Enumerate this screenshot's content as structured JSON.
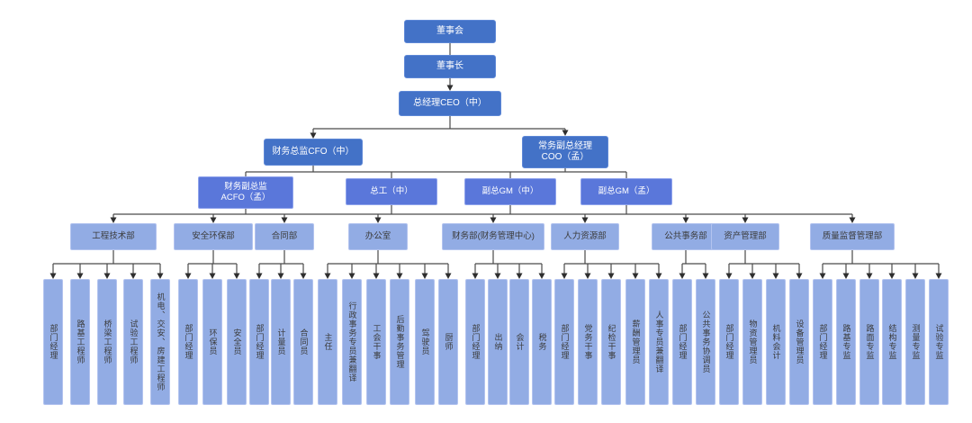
{
  "org": {
    "top": [
      "董事会",
      "董事长",
      "总经理CEO（中）"
    ],
    "level4": [
      {
        "label": "财务总监CFO（中）"
      },
      {
        "label": "常务副总经理\nCOO（孟）"
      }
    ],
    "level5": [
      {
        "label": "财务副总监\nACFO（孟）"
      },
      {
        "label": "总工（中）"
      },
      {
        "label": "副总GM（中）"
      },
      {
        "label": "副总GM（孟）"
      }
    ],
    "departments": [
      {
        "label": "工程技术部",
        "roles": [
          "部门经理",
          "路基工程师",
          "桥梁工程师",
          "试验工程师",
          "机电、交安、房建工程师"
        ]
      },
      {
        "label": "安全环保部",
        "roles": [
          "部门经理",
          "环保员",
          "安全员"
        ]
      },
      {
        "label": "合同部",
        "roles": [
          "部门经理",
          "计量员",
          "合同员"
        ]
      },
      {
        "label": "办公室",
        "roles": [
          "主任",
          "行政事务专员兼翻译",
          "工会干事",
          "后勤事务管理",
          "驾驶员",
          "厨师"
        ]
      },
      {
        "label": "财务部(财务管理中心)",
        "roles": [
          "部门经理",
          "出纳",
          "会计",
          "税务"
        ]
      },
      {
        "label": "人力资源部",
        "roles": [
          "部门经理",
          "党务干事",
          "纪检干事",
          "薪酬管理员",
          "人事专员兼翻译"
        ]
      },
      {
        "label": "公共事务部",
        "roles": [
          "部门经理",
          "公共事务协调员"
        ]
      },
      {
        "label": "资产管理部",
        "roles": [
          "部门经理",
          "物资管理员",
          "机料会计",
          "设备管理员"
        ]
      },
      {
        "label": "质量监督管理部",
        "roles": [
          "部门经理",
          "路基专监",
          "路面专监",
          "结构专监",
          "测量专监",
          "试验专监"
        ]
      }
    ]
  },
  "colors": {
    "node_dark": "#4372c7",
    "node_mid": "#5a77da",
    "node_light": "#92ace4",
    "connector": "#4a4a4a",
    "arrow": "#2e2e2e",
    "text_on_dark": "#ffffff",
    "text_on_light": "#3b3b3b",
    "background": "#ffffff"
  }
}
